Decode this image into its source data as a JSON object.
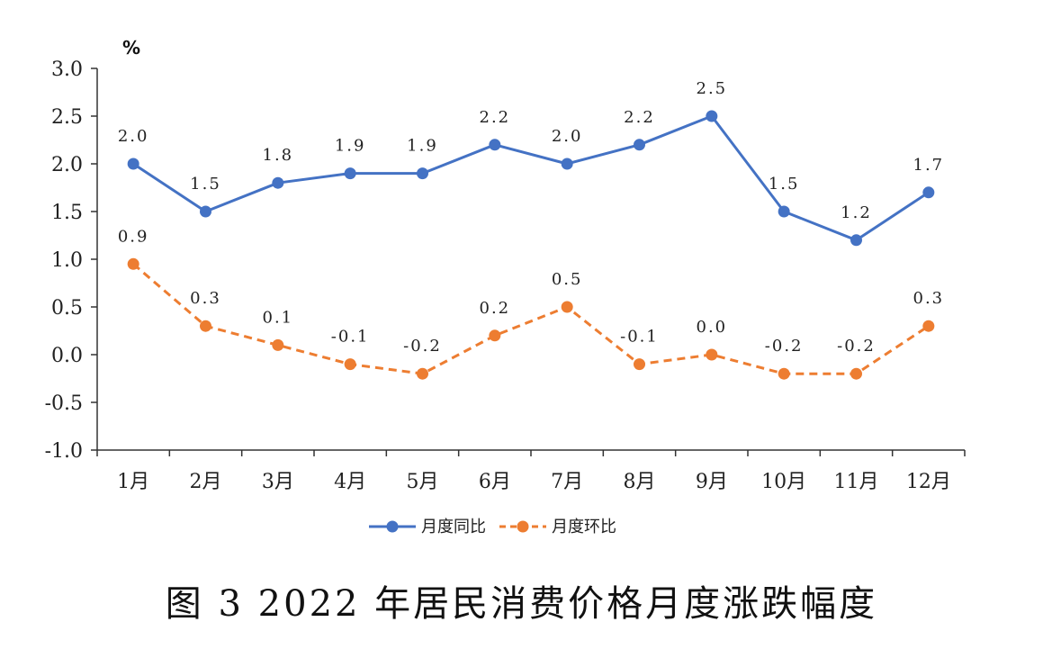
{
  "chart_data": {
    "type": "line",
    "title": "图 3 2022 年居民消费价格月度涨跌幅度",
    "ylabel": "%",
    "xlabel": "",
    "categories": [
      "1月",
      "2月",
      "3月",
      "4月",
      "5月",
      "6月",
      "7月",
      "8月",
      "9月",
      "10月",
      "11月",
      "12月"
    ],
    "ylim": [
      -1.0,
      3.0
    ],
    "yticks": [
      "3.0",
      "2.5",
      "2.0",
      "1.5",
      "1.0",
      "0.5",
      "0.0",
      "-0.5",
      "-1.0"
    ],
    "ytick_values": [
      3.0,
      2.5,
      2.0,
      1.5,
      1.0,
      0.5,
      0.0,
      -0.5,
      -1.0
    ],
    "grid": false,
    "legend_position": "bottom",
    "series": [
      {
        "name": "月度同比",
        "color": "#4472c4",
        "style": "solid",
        "values": [
          2.0,
          1.5,
          1.8,
          1.9,
          1.9,
          2.2,
          2.0,
          2.2,
          2.5,
          1.5,
          1.2,
          1.7
        ],
        "labels": [
          "2.0",
          "1.5",
          "1.8",
          "1.9",
          "1.9",
          "2.2",
          "2.0",
          "2.2",
          "2.5",
          "1.5",
          "1.2",
          "1.7"
        ]
      },
      {
        "name": "月度环比",
        "color": "#ed7d31",
        "style": "dashed",
        "values": [
          0.95,
          0.3,
          0.1,
          -0.1,
          -0.2,
          0.2,
          0.5,
          -0.1,
          0.0,
          -0.2,
          -0.2,
          0.3
        ],
        "labels": [
          "0.9",
          "0.3",
          "0.1",
          "-0.1",
          "-0.2",
          "0.2",
          "0.5",
          "-0.1",
          "0.0",
          "-0.2",
          "-0.2",
          "0.3"
        ]
      }
    ]
  }
}
